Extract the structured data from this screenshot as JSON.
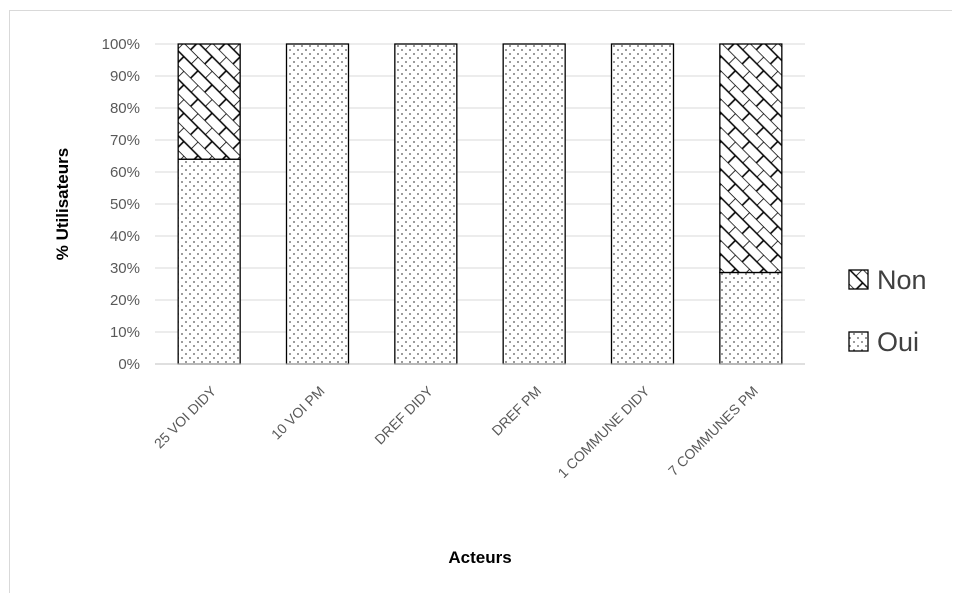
{
  "chart_data": {
    "type": "bar",
    "stacked": true,
    "percent": true,
    "categories": [
      "25 VOI DIDY",
      "10 VOI PM",
      "DREF DIDY",
      "DREF PM",
      "1 COMMUNE DIDY",
      "7 COMMUNES PM"
    ],
    "series": [
      {
        "name": "Oui",
        "pattern": "dots",
        "values": [
          64,
          100,
          100,
          100,
          100,
          28.6
        ]
      },
      {
        "name": "Non",
        "pattern": "brick",
        "values": [
          36,
          0,
          0,
          0,
          0,
          71.4
        ]
      }
    ],
    "xlabel": "Acteurs",
    "ylabel": "% Utilisateurs",
    "ylim": [
      0,
      100
    ],
    "yticks": [
      "0%",
      "10%",
      "20%",
      "30%",
      "40%",
      "50%",
      "60%",
      "70%",
      "80%",
      "90%",
      "100%"
    ],
    "grid": true,
    "legend_position": "right",
    "legend_order": [
      "Non",
      "Oui"
    ],
    "colors": {
      "fill": "#ffffff",
      "outline": "#000000",
      "grid": "#d9d9d9",
      "tick_text": "#595959"
    }
  }
}
